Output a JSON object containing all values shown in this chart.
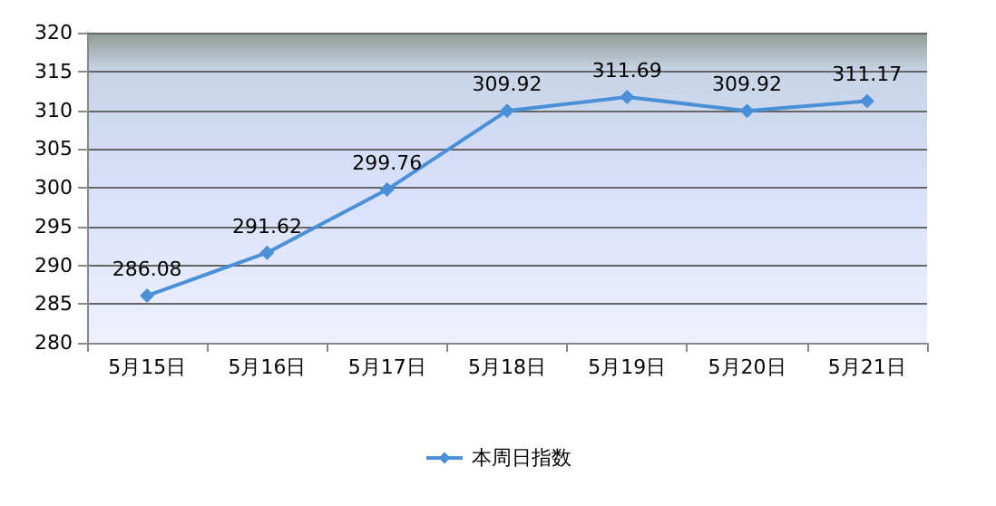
{
  "chart_data": {
    "type": "line",
    "categories": [
      "5月15日",
      "5月16日",
      "5月17日",
      "5月18日",
      "5月19日",
      "5月20日",
      "5月21日"
    ],
    "series": [
      {
        "name": "本周日指数",
        "color": "#4a90d9",
        "values": [
          286.08,
          291.62,
          299.76,
          309.92,
          311.69,
          309.92,
          311.17
        ]
      }
    ],
    "ylim": [
      280,
      320
    ],
    "yticks": [
      280,
      285,
      290,
      295,
      300,
      305,
      310,
      315,
      320
    ],
    "grid": "y",
    "legend": "bottom",
    "marker": "diamond",
    "line_style": "solid",
    "data_labels": true
  }
}
